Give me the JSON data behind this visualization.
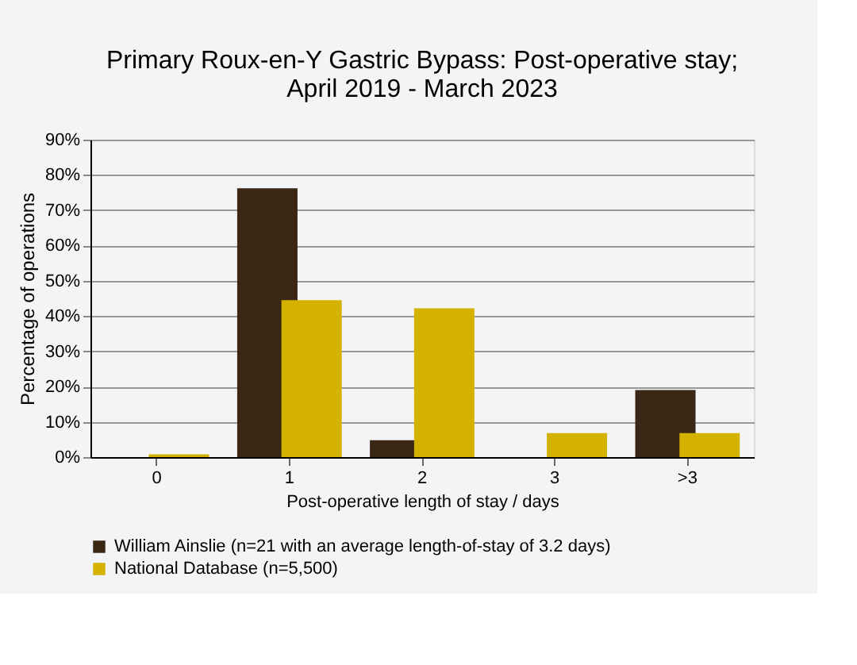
{
  "chart_data": {
    "type": "bar",
    "title": [
      "Primary Roux-en-Y Gastric Bypass: Post-operative stay;",
      "April 2019 - March 2023"
    ],
    "xlabel": "Post-operative length of stay / days",
    "ylabel": "Percentage of operations",
    "categories": [
      "0",
      "1",
      "2",
      "3",
      ">3"
    ],
    "series": [
      {
        "name": "William Ainslie (n=21 with an average length-of-stay of 3.2 days)",
        "color": "#3a2614",
        "values": [
          0,
          76.2,
          4.8,
          0,
          19.0
        ]
      },
      {
        "name": "National Database (n=5,500)",
        "color": "#d4b200",
        "values": [
          0.8,
          44.5,
          42.2,
          6.8,
          6.8
        ]
      }
    ],
    "ylim": [
      0,
      90
    ],
    "yticks": [
      {
        "value": 0,
        "label": "0%"
      },
      {
        "value": 10,
        "label": "10%"
      },
      {
        "value": 20,
        "label": "20%"
      },
      {
        "value": 30,
        "label": "30%"
      },
      {
        "value": 40,
        "label": "40%"
      },
      {
        "value": 50,
        "label": "50%"
      },
      {
        "value": 60,
        "label": "60%"
      },
      {
        "value": 70,
        "label": "70%"
      },
      {
        "value": 80,
        "label": "80%"
      },
      {
        "value": 90,
        "label": "90%"
      }
    ],
    "grid": "y",
    "legend": "bottom"
  }
}
